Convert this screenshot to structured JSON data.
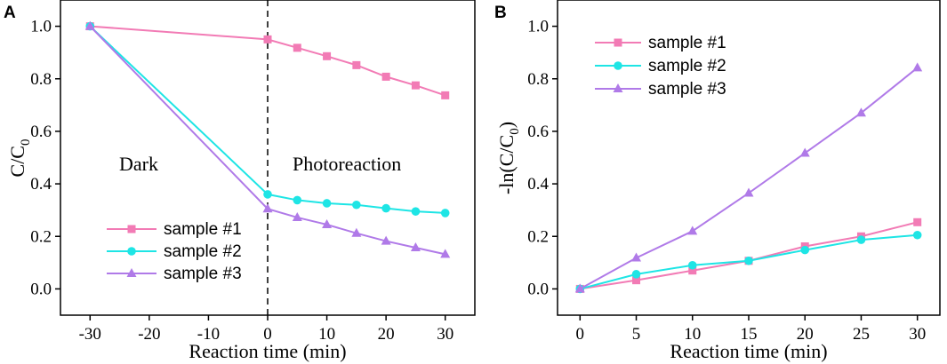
{
  "chart_data": [
    {
      "panel": "A",
      "type": "line",
      "xlabel": "Reaction time (min)",
      "ylabel_main": "C/C",
      "ylabel_sub": "0",
      "xlim": [
        -35,
        35
      ],
      "ylim": [
        -0.1,
        1.1
      ],
      "xticks": [
        -30,
        -20,
        -10,
        0,
        10,
        20,
        30
      ],
      "yticks": [
        0.0,
        0.2,
        0.4,
        0.6,
        0.8,
        1.0
      ],
      "ytick_labels": [
        "0.0",
        "0.2",
        "0.4",
        "0.6",
        "0.8",
        "1.0"
      ],
      "divider_x": 0,
      "annotations": [
        {
          "text": "Dark"
        },
        {
          "text": "Photoreaction"
        }
      ],
      "legend_position": "bottom-left",
      "series": [
        {
          "name": "sample #1",
          "color": "#f27bb5",
          "marker": "square",
          "x": [
            -30,
            0,
            5,
            10,
            15,
            20,
            25,
            30
          ],
          "y": [
            1.0,
            0.95,
            0.918,
            0.886,
            0.852,
            0.808,
            0.775,
            0.737
          ]
        },
        {
          "name": "sample #2",
          "color": "#1ee5e5",
          "marker": "circle",
          "x": [
            -30,
            0,
            5,
            10,
            15,
            20,
            25,
            30
          ],
          "y": [
            1.0,
            0.36,
            0.338,
            0.326,
            0.32,
            0.307,
            0.295,
            0.289
          ]
        },
        {
          "name": "sample #3",
          "color": "#b07ae8",
          "marker": "triangle",
          "x": [
            -30,
            0,
            5,
            10,
            15,
            20,
            25,
            30
          ],
          "y": [
            1.0,
            0.305,
            0.272,
            0.245,
            0.212,
            0.182,
            0.157,
            0.132
          ]
        }
      ]
    },
    {
      "panel": "B",
      "type": "line",
      "xlabel": "Reaction time (min)",
      "ylabel_main": "-ln(C/C",
      "ylabel_sub": "0",
      "ylabel_tail": ")",
      "xlim": [
        -2,
        32
      ],
      "ylim": [
        -0.1,
        1.1
      ],
      "xticks": [
        0,
        5,
        10,
        15,
        20,
        25,
        30
      ],
      "yticks": [
        0.0,
        0.2,
        0.4,
        0.6,
        0.8,
        1.0
      ],
      "ytick_labels": [
        "0.0",
        "0.2",
        "0.4",
        "0.6",
        "0.8",
        "1.0"
      ],
      "legend_position": "top-left",
      "series": [
        {
          "name": "sample #1",
          "color": "#f27bb5",
          "marker": "square",
          "x": [
            0,
            5,
            10,
            15,
            20,
            25,
            30
          ],
          "y": [
            0.0,
            0.033,
            0.07,
            0.107,
            0.162,
            0.2,
            0.254
          ]
        },
        {
          "name": "sample #2",
          "color": "#1ee5e5",
          "marker": "circle",
          "x": [
            0,
            5,
            10,
            15,
            20,
            25,
            30
          ],
          "y": [
            0.0,
            0.056,
            0.09,
            0.107,
            0.148,
            0.187,
            0.205
          ]
        },
        {
          "name": "sample #3",
          "color": "#b07ae8",
          "marker": "triangle",
          "x": [
            0,
            5,
            10,
            15,
            20,
            25,
            30
          ],
          "y": [
            0.0,
            0.118,
            0.22,
            0.365,
            0.517,
            0.67,
            0.842
          ]
        }
      ]
    }
  ]
}
